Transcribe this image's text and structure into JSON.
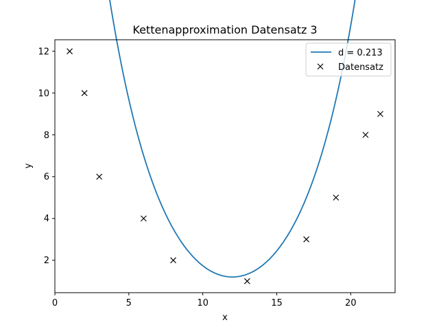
{
  "chart_data": {
    "type": "line",
    "title": "Kettenapproximation Datensatz 3",
    "xlabel": "x",
    "ylabel": "y",
    "xlim": [
      0,
      23
    ],
    "ylim": [
      0.45,
      12.55
    ],
    "xticks": [
      0,
      5,
      10,
      15,
      20
    ],
    "yticks": [
      2,
      4,
      6,
      8,
      10,
      12
    ],
    "grid": false,
    "legend_position": "top-right",
    "series": [
      {
        "name": "d = 0.213",
        "kind": "line",
        "color": "#1f77b4",
        "curve_model": "catenary",
        "curve_params": {
          "a": 3.8,
          "x0": 12.0,
          "y0": 1.2
        },
        "x_range": [
          1,
          22
        ]
      },
      {
        "name": "Datensatz",
        "kind": "scatter",
        "marker": "x",
        "color": "#000000",
        "x": [
          1,
          2,
          3,
          6,
          8,
          13,
          17,
          19,
          21,
          22
        ],
        "y": [
          12,
          10,
          6,
          4,
          2,
          1,
          3,
          5,
          8,
          9
        ]
      }
    ]
  }
}
